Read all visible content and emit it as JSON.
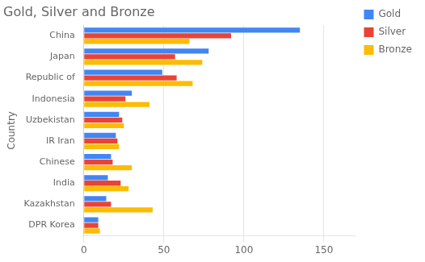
{
  "chart_data": {
    "type": "bar",
    "orientation": "horizontal",
    "title": "Gold, Silver and Bronze",
    "ylabel": "Country",
    "categories": [
      "China",
      "Japan",
      "Republic of",
      "Indonesia",
      "Uzbekistan",
      "IR Iran",
      "Chinese",
      "India",
      "Kazakhstan",
      "DPR Korea"
    ],
    "series": [
      {
        "name": "Gold",
        "color": "#4285F4",
        "values": [
          135,
          78,
          49,
          30,
          22,
          20,
          17,
          15,
          14,
          9
        ]
      },
      {
        "name": "Silver",
        "color": "#EA4335",
        "values": [
          92,
          57,
          58,
          26,
          24,
          21,
          18,
          23,
          17,
          9
        ]
      },
      {
        "name": "Bronze",
        "color": "#FBBC04",
        "values": [
          66,
          74,
          68,
          41,
          25,
          22,
          30,
          28,
          43,
          10
        ]
      }
    ],
    "xlim": [
      0,
      170
    ],
    "xticks": [
      0,
      50,
      100,
      150
    ],
    "grid": true,
    "legend": "right"
  }
}
